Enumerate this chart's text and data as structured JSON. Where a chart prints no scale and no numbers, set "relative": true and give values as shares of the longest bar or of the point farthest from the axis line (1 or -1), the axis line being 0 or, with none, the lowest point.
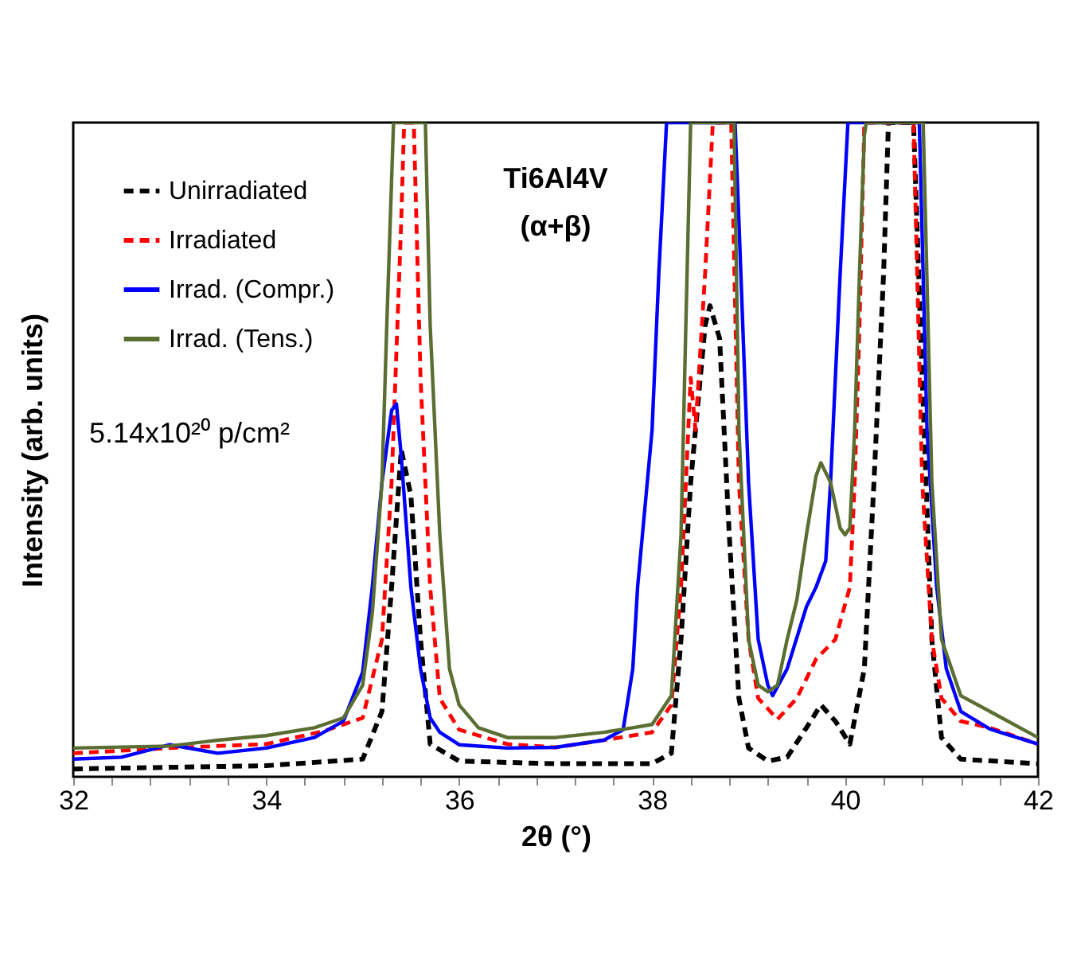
{
  "chart_data": {
    "type": "line",
    "xlabel": "2θ (°)",
    "ylabel": "Intensity (arb. units)",
    "relative": true,
    "annotations": [
      "Ti6Al4V",
      "(α+β)",
      "5.14x10²⁰ p/cm²"
    ],
    "xlim": [
      32,
      42
    ],
    "xticks": [
      32,
      {
        "value": 32.4,
        "label": null
      },
      {
        "value": 32.8,
        "label": null
      },
      {
        "value": 33.2,
        "label": null
      },
      {
        "value": 33.6,
        "label": null
      },
      34,
      {
        "value": 34.4,
        "label": null
      },
      {
        "value": 34.8,
        "label": null
      },
      {
        "value": 35.2,
        "label": null
      },
      {
        "value": 35.6,
        "label": null
      },
      36,
      {
        "value": 36.4,
        "label": null
      },
      {
        "value": 36.8,
        "label": null
      },
      {
        "value": 37.2,
        "label": null
      },
      {
        "value": 37.6,
        "label": null
      },
      38,
      {
        "value": 38.4,
        "label": null
      },
      {
        "value": 38.8,
        "label": null
      },
      {
        "value": 39.2,
        "label": null
      },
      {
        "value": 39.6,
        "label": null
      },
      40,
      {
        "value": 40.4,
        "label": null
      },
      {
        "value": 40.8,
        "label": null
      },
      {
        "value": 41.2,
        "label": null
      },
      {
        "value": 41.6,
        "label": null
      },
      42
    ],
    "legend": "top left",
    "grid": false,
    "marker": "none",
    "series": [
      {
        "name": "Unirradiated",
        "color": "#000000",
        "line_style": "dashed",
        "x": [
          32,
          34,
          35,
          35.2,
          35.3,
          35.4,
          35.5,
          35.6,
          35.7,
          36,
          37,
          38,
          38.2,
          38.3,
          38.4,
          38.55,
          38.6,
          38.7,
          38.8,
          38.9,
          39,
          39.2,
          39.4,
          39.6,
          39.75,
          39.9,
          40.05,
          40.2,
          40.3,
          40.4,
          40.45,
          40.71,
          40.8,
          40.9,
          41,
          41.2,
          42
        ],
        "values": [
          0.012,
          0.017,
          0.027,
          0.1,
          0.29,
          0.5,
          0.43,
          0.21,
          0.05,
          0.024,
          0.02,
          0.02,
          0.036,
          0.21,
          0.45,
          0.69,
          0.72,
          0.67,
          0.37,
          0.12,
          0.044,
          0.024,
          0.03,
          0.075,
          0.11,
          0.085,
          0.05,
          0.165,
          0.45,
          0.77,
          1,
          1,
          0.61,
          0.21,
          0.06,
          0.027,
          0.02
        ]
      },
      {
        "name": "Irradiated",
        "color": "#ff0000",
        "line_style": "dashed",
        "x": [
          32,
          33,
          34,
          34.6,
          35,
          35.2,
          35.3,
          35.4,
          35.43,
          35.53,
          35.6,
          35.7,
          35.8,
          36,
          36.5,
          37,
          37.5,
          38,
          38.2,
          38.3,
          38.4,
          38.45,
          38.55,
          38.63,
          38.82,
          38.9,
          39,
          39.1,
          39.3,
          39.5,
          39.7,
          39.9,
          40.05,
          40.1,
          40.15,
          40.2,
          40.71,
          40.8,
          40.9,
          41,
          41.2,
          41.5,
          42
        ],
        "values": [
          0.036,
          0.044,
          0.05,
          0.07,
          0.09,
          0.21,
          0.45,
          0.85,
          1,
          1,
          0.61,
          0.29,
          0.12,
          0.072,
          0.05,
          0.045,
          0.056,
          0.068,
          0.11,
          0.29,
          0.61,
          0.53,
          0.77,
          1,
          1,
          0.45,
          0.21,
          0.12,
          0.088,
          0.12,
          0.18,
          0.21,
          0.29,
          0.45,
          0.69,
          1,
          1,
          0.45,
          0.21,
          0.12,
          0.085,
          0.075,
          0.05
        ]
      },
      {
        "name": "Irrad. (Compr.)",
        "color": "#0000ff",
        "line_style": "solid",
        "x": [
          32,
          32.5,
          33,
          33.5,
          34,
          34.5,
          34.8,
          35,
          35.1,
          35.2,
          35.3,
          35.35,
          35.4,
          35.5,
          35.6,
          35.7,
          35.8,
          36,
          36.5,
          37,
          37.5,
          37.7,
          37.8,
          37.85,
          38,
          38.07,
          38.15,
          38.86,
          38.9,
          39,
          39.1,
          39.2,
          39.25,
          39.4,
          39.6,
          39.7,
          39.8,
          39.85,
          39.9,
          39.95,
          40.03,
          40.77,
          40.85,
          40.95,
          41.05,
          41.2,
          41.5,
          42
        ],
        "values": [
          0.027,
          0.03,
          0.049,
          0.036,
          0.044,
          0.06,
          0.085,
          0.16,
          0.29,
          0.45,
          0.56,
          0.57,
          0.49,
          0.29,
          0.165,
          0.09,
          0.068,
          0.049,
          0.044,
          0.045,
          0.056,
          0.072,
          0.165,
          0.29,
          0.53,
          0.77,
          1,
          1,
          0.85,
          0.45,
          0.21,
          0.14,
          0.124,
          0.165,
          0.26,
          0.29,
          0.33,
          0.45,
          0.61,
          0.77,
          1,
          1,
          0.53,
          0.29,
          0.165,
          0.1,
          0.073,
          0.05
        ]
      },
      {
        "name": "Irrad. (Tens.)",
        "color": "#5a6e32",
        "line_style": "solid",
        "x": [
          32,
          33,
          33.5,
          34,
          34.5,
          34.8,
          35,
          35.1,
          35.2,
          35.25,
          35.32,
          35.65,
          35.7,
          35.8,
          35.9,
          36,
          36.2,
          36.5,
          37,
          37.5,
          37.8,
          38,
          38.2,
          38.3,
          38.35,
          38.4,
          38.85,
          38.9,
          39,
          39.1,
          39.2,
          39.3,
          39.4,
          39.5,
          39.6,
          39.7,
          39.75,
          39.85,
          39.95,
          40,
          40.05,
          40.1,
          40.15,
          40.2,
          40.22,
          40.81,
          40.9,
          41,
          41.2,
          41.5,
          42
        ],
        "values": [
          0.044,
          0.047,
          0.056,
          0.063,
          0.075,
          0.09,
          0.14,
          0.25,
          0.45,
          0.69,
          1,
          1,
          0.69,
          0.37,
          0.165,
          0.11,
          0.075,
          0.06,
          0.06,
          0.068,
          0.075,
          0.08,
          0.124,
          0.37,
          0.69,
          1,
          1,
          0.53,
          0.21,
          0.14,
          0.13,
          0.14,
          0.21,
          0.27,
          0.37,
          0.46,
          0.48,
          0.45,
          0.38,
          0.37,
          0.38,
          0.53,
          0.77,
          0.98,
          1,
          1,
          0.45,
          0.21,
          0.124,
          0.1,
          0.06
        ]
      }
    ]
  }
}
